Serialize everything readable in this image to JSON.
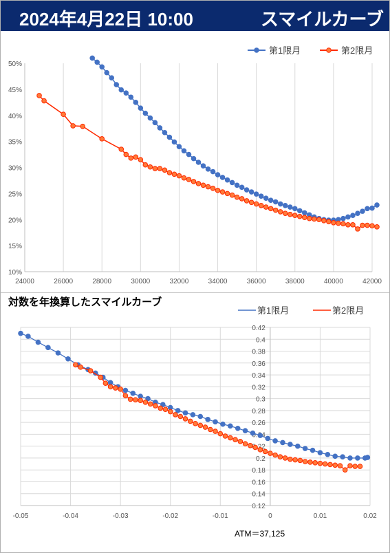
{
  "header": {
    "date": "2024年4月22日 10:00",
    "title": "スマイルカーブ"
  },
  "chart2_heading": "対数を年換算したスマイルカーブ",
  "atm_note": "ATM＝37,125",
  "colors": {
    "series1": "#4472c4",
    "series2": "#ff2a00",
    "series2_fill": "#ff7b3a",
    "header_bg": "#0b2a6e"
  },
  "chart_data": [
    {
      "type": "line",
      "title": "",
      "xlim": [
        24000,
        42000
      ],
      "ylim": [
        10,
        50
      ],
      "x_ticks": [
        "24000",
        "26000",
        "28000",
        "30000",
        "32000",
        "34000",
        "36000",
        "38000",
        "40000",
        "42000"
      ],
      "y_ticks": [
        "10%",
        "15%",
        "20%",
        "25%",
        "30%",
        "35%",
        "40%",
        "45%",
        "50%"
      ],
      "legend_position": "top-right",
      "grid": "vertical",
      "series": [
        {
          "name": "第1限月",
          "x": [
            27500,
            27750,
            28000,
            28250,
            28500,
            28750,
            29000,
            29250,
            29500,
            29750,
            30000,
            30250,
            30500,
            30750,
            31000,
            31250,
            31500,
            31750,
            32000,
            32250,
            32500,
            32750,
            33000,
            33250,
            33500,
            33750,
            34000,
            34250,
            34500,
            34750,
            35000,
            35250,
            35500,
            35750,
            36000,
            36250,
            36500,
            36750,
            37000,
            37250,
            37500,
            37750,
            38000,
            38250,
            38500,
            38750,
            39000,
            39250,
            39500,
            39750,
            40000,
            40250,
            40500,
            40750,
            41000,
            41250,
            41500,
            41750,
            42000,
            42250
          ],
          "values": [
            51.0,
            50.2,
            49.3,
            48.2,
            47.2,
            45.9,
            44.9,
            44.3,
            43.5,
            42.5,
            41.4,
            40.4,
            39.5,
            38.6,
            37.6,
            36.7,
            35.8,
            34.9,
            34.0,
            33.2,
            32.5,
            31.7,
            31.0,
            30.3,
            29.7,
            29.2,
            28.6,
            28.1,
            27.6,
            27.1,
            26.6,
            26.2,
            25.7,
            25.3,
            24.9,
            24.5,
            24.1,
            23.7,
            23.4,
            23.0,
            22.7,
            22.4,
            22.1,
            21.7,
            21.3,
            20.9,
            20.5,
            20.2,
            20.0,
            19.9,
            19.9,
            20.0,
            20.2,
            20.5,
            20.8,
            21.2,
            21.6,
            22.1,
            22.2,
            22.8
          ]
        },
        {
          "name": "第2限月",
          "x": [
            24750,
            25000,
            26000,
            26500,
            27000,
            28000,
            29000,
            29250,
            29500,
            29750,
            30000,
            30250,
            30500,
            30750,
            31000,
            31250,
            31500,
            31750,
            32000,
            32250,
            32500,
            32750,
            33000,
            33250,
            33500,
            33750,
            34000,
            34250,
            34500,
            34750,
            35000,
            35250,
            35500,
            35750,
            36000,
            36250,
            36500,
            36750,
            37000,
            37250,
            37500,
            37750,
            38000,
            38250,
            38500,
            38750,
            39000,
            39250,
            39500,
            39750,
            40000,
            40250,
            40500,
            40750,
            41000,
            41250,
            41500,
            41750,
            42000,
            42250
          ],
          "values": [
            43.8,
            42.8,
            40.2,
            38.0,
            37.9,
            35.5,
            33.5,
            32.5,
            31.8,
            32.0,
            31.5,
            30.5,
            30.1,
            29.8,
            29.8,
            29.5,
            29.0,
            28.7,
            28.4,
            28.0,
            27.7,
            27.3,
            26.9,
            26.6,
            26.3,
            26.0,
            25.6,
            25.3,
            25.0,
            24.7,
            24.3,
            24.0,
            23.6,
            23.3,
            23.0,
            22.7,
            22.4,
            22.1,
            21.8,
            21.5,
            21.2,
            21.0,
            20.8,
            20.6,
            20.4,
            20.2,
            20.1,
            20.0,
            19.8,
            19.6,
            19.4,
            19.3,
            19.2,
            19.0,
            19.0,
            18.2,
            18.9,
            18.9,
            18.8,
            18.6
          ]
        }
      ]
    },
    {
      "type": "line",
      "title": "",
      "xlim": [
        -0.05,
        0.02
      ],
      "ylim": [
        0.12,
        0.42
      ],
      "x_ticks": [
        "-0.05",
        "-0.04",
        "-0.03",
        "-0.02",
        "-0.01",
        "0",
        "0.01",
        "0.02"
      ],
      "y_ticks": [
        "0.12",
        "0.14",
        "0.16",
        "0.18",
        "0.2",
        "0.22",
        "0.24",
        "0.26",
        "0.28",
        "0.3",
        "0.32",
        "0.34",
        "0.36",
        "0.38",
        "0.4",
        "0.42"
      ],
      "legend_position": "top-right",
      "grid": "both",
      "series": [
        {
          "name": "第1限月",
          "x": [
            -0.05,
            -0.0485,
            -0.0465,
            -0.0445,
            -0.0425,
            -0.0405,
            -0.0385,
            -0.0365,
            -0.035,
            -0.0335,
            -0.032,
            -0.0305,
            -0.029,
            -0.0275,
            -0.026,
            -0.0245,
            -0.023,
            -0.0215,
            -0.02,
            -0.0185,
            -0.017,
            -0.0155,
            -0.014,
            -0.0125,
            -0.011,
            -0.0095,
            -0.008,
            -0.0065,
            -0.005,
            -0.0035,
            -0.002,
            -0.0005,
            0.001,
            0.0025,
            0.004,
            0.0055,
            0.007,
            0.0085,
            0.01,
            0.0115,
            0.013,
            0.0145,
            0.016,
            0.0175,
            0.019,
            0.0195
          ],
          "values": [
            0.41,
            0.405,
            0.395,
            0.386,
            0.377,
            0.367,
            0.357,
            0.349,
            0.343,
            0.336,
            0.327,
            0.32,
            0.314,
            0.309,
            0.304,
            0.3,
            0.294,
            0.29,
            0.285,
            0.28,
            0.276,
            0.273,
            0.27,
            0.265,
            0.261,
            0.257,
            0.254,
            0.25,
            0.246,
            0.242,
            0.238,
            0.233,
            0.229,
            0.226,
            0.223,
            0.22,
            0.216,
            0.213,
            0.209,
            0.206,
            0.203,
            0.202,
            0.2,
            0.2,
            0.2,
            0.201
          ]
        },
        {
          "name": "第2限月",
          "x": [
            -0.039,
            -0.038,
            -0.036,
            -0.034,
            -0.033,
            -0.032,
            -0.031,
            -0.03,
            -0.029,
            -0.028,
            -0.027,
            -0.026,
            -0.025,
            -0.024,
            -0.023,
            -0.022,
            -0.021,
            -0.02,
            -0.019,
            -0.018,
            -0.017,
            -0.016,
            -0.015,
            -0.014,
            -0.013,
            -0.012,
            -0.011,
            -0.01,
            -0.009,
            -0.008,
            -0.007,
            -0.006,
            -0.005,
            -0.004,
            -0.003,
            -0.002,
            -0.001,
            0.0,
            0.001,
            0.002,
            0.003,
            0.004,
            0.005,
            0.006,
            0.007,
            0.008,
            0.009,
            0.01,
            0.011,
            0.012,
            0.013,
            0.014,
            0.015,
            0.016,
            0.017,
            0.018
          ],
          "values": [
            0.357,
            0.353,
            0.347,
            0.336,
            0.326,
            0.32,
            0.318,
            0.316,
            0.305,
            0.299,
            0.298,
            0.297,
            0.294,
            0.291,
            0.288,
            0.284,
            0.282,
            0.278,
            0.273,
            0.27,
            0.266,
            0.262,
            0.258,
            0.255,
            0.252,
            0.248,
            0.245,
            0.241,
            0.237,
            0.234,
            0.231,
            0.228,
            0.224,
            0.221,
            0.218,
            0.214,
            0.211,
            0.208,
            0.205,
            0.202,
            0.2,
            0.198,
            0.197,
            0.196,
            0.194,
            0.193,
            0.192,
            0.191,
            0.19,
            0.189,
            0.188,
            0.187,
            0.18,
            0.187,
            0.186,
            0.186
          ]
        }
      ]
    }
  ]
}
